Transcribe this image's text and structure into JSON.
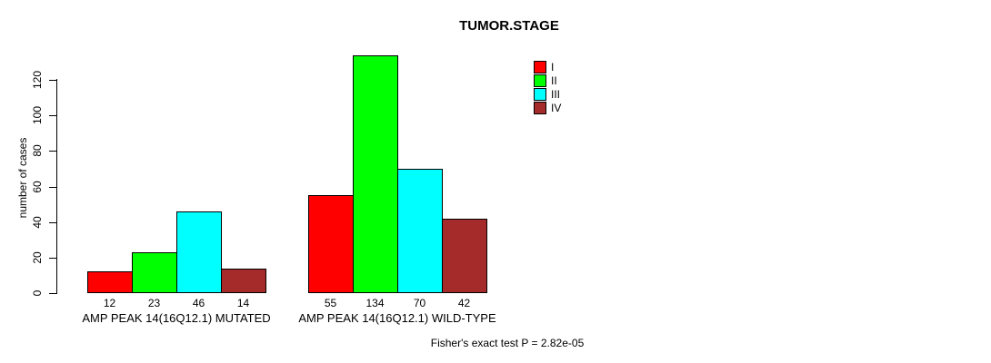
{
  "chart_data": {
    "type": "bar",
    "title": "TUMOR.STAGE",
    "ylabel": "number of cases",
    "xlabel": "",
    "ylim": [
      0,
      120
    ],
    "yticks": [
      0,
      20,
      40,
      60,
      80,
      100,
      120
    ],
    "grid": false,
    "legend_position": "top-right-of-center",
    "categories": [
      "AMP PEAK 14(16Q12.1) MUTATED",
      "AMP PEAK 14(16Q12.1) WILD-TYPE"
    ],
    "series": [
      {
        "name": "I",
        "color": "#ff0000",
        "values": [
          12,
          55
        ]
      },
      {
        "name": "II",
        "color": "#00ff00",
        "values": [
          23,
          134
        ]
      },
      {
        "name": "III",
        "color": "#00ffff",
        "values": [
          46,
          70
        ]
      },
      {
        "name": "IV",
        "color": "#a52a2a",
        "values": [
          14,
          42
        ]
      }
    ],
    "bar_value_labels": [
      [
        12,
        23,
        46,
        14
      ],
      [
        55,
        134,
        70,
        42
      ]
    ],
    "annotation": "Fisher's exact test P = 2.82e-05",
    "background_color": "#ffffff",
    "bar_border_color": "#000000",
    "text_color": "#000000"
  }
}
